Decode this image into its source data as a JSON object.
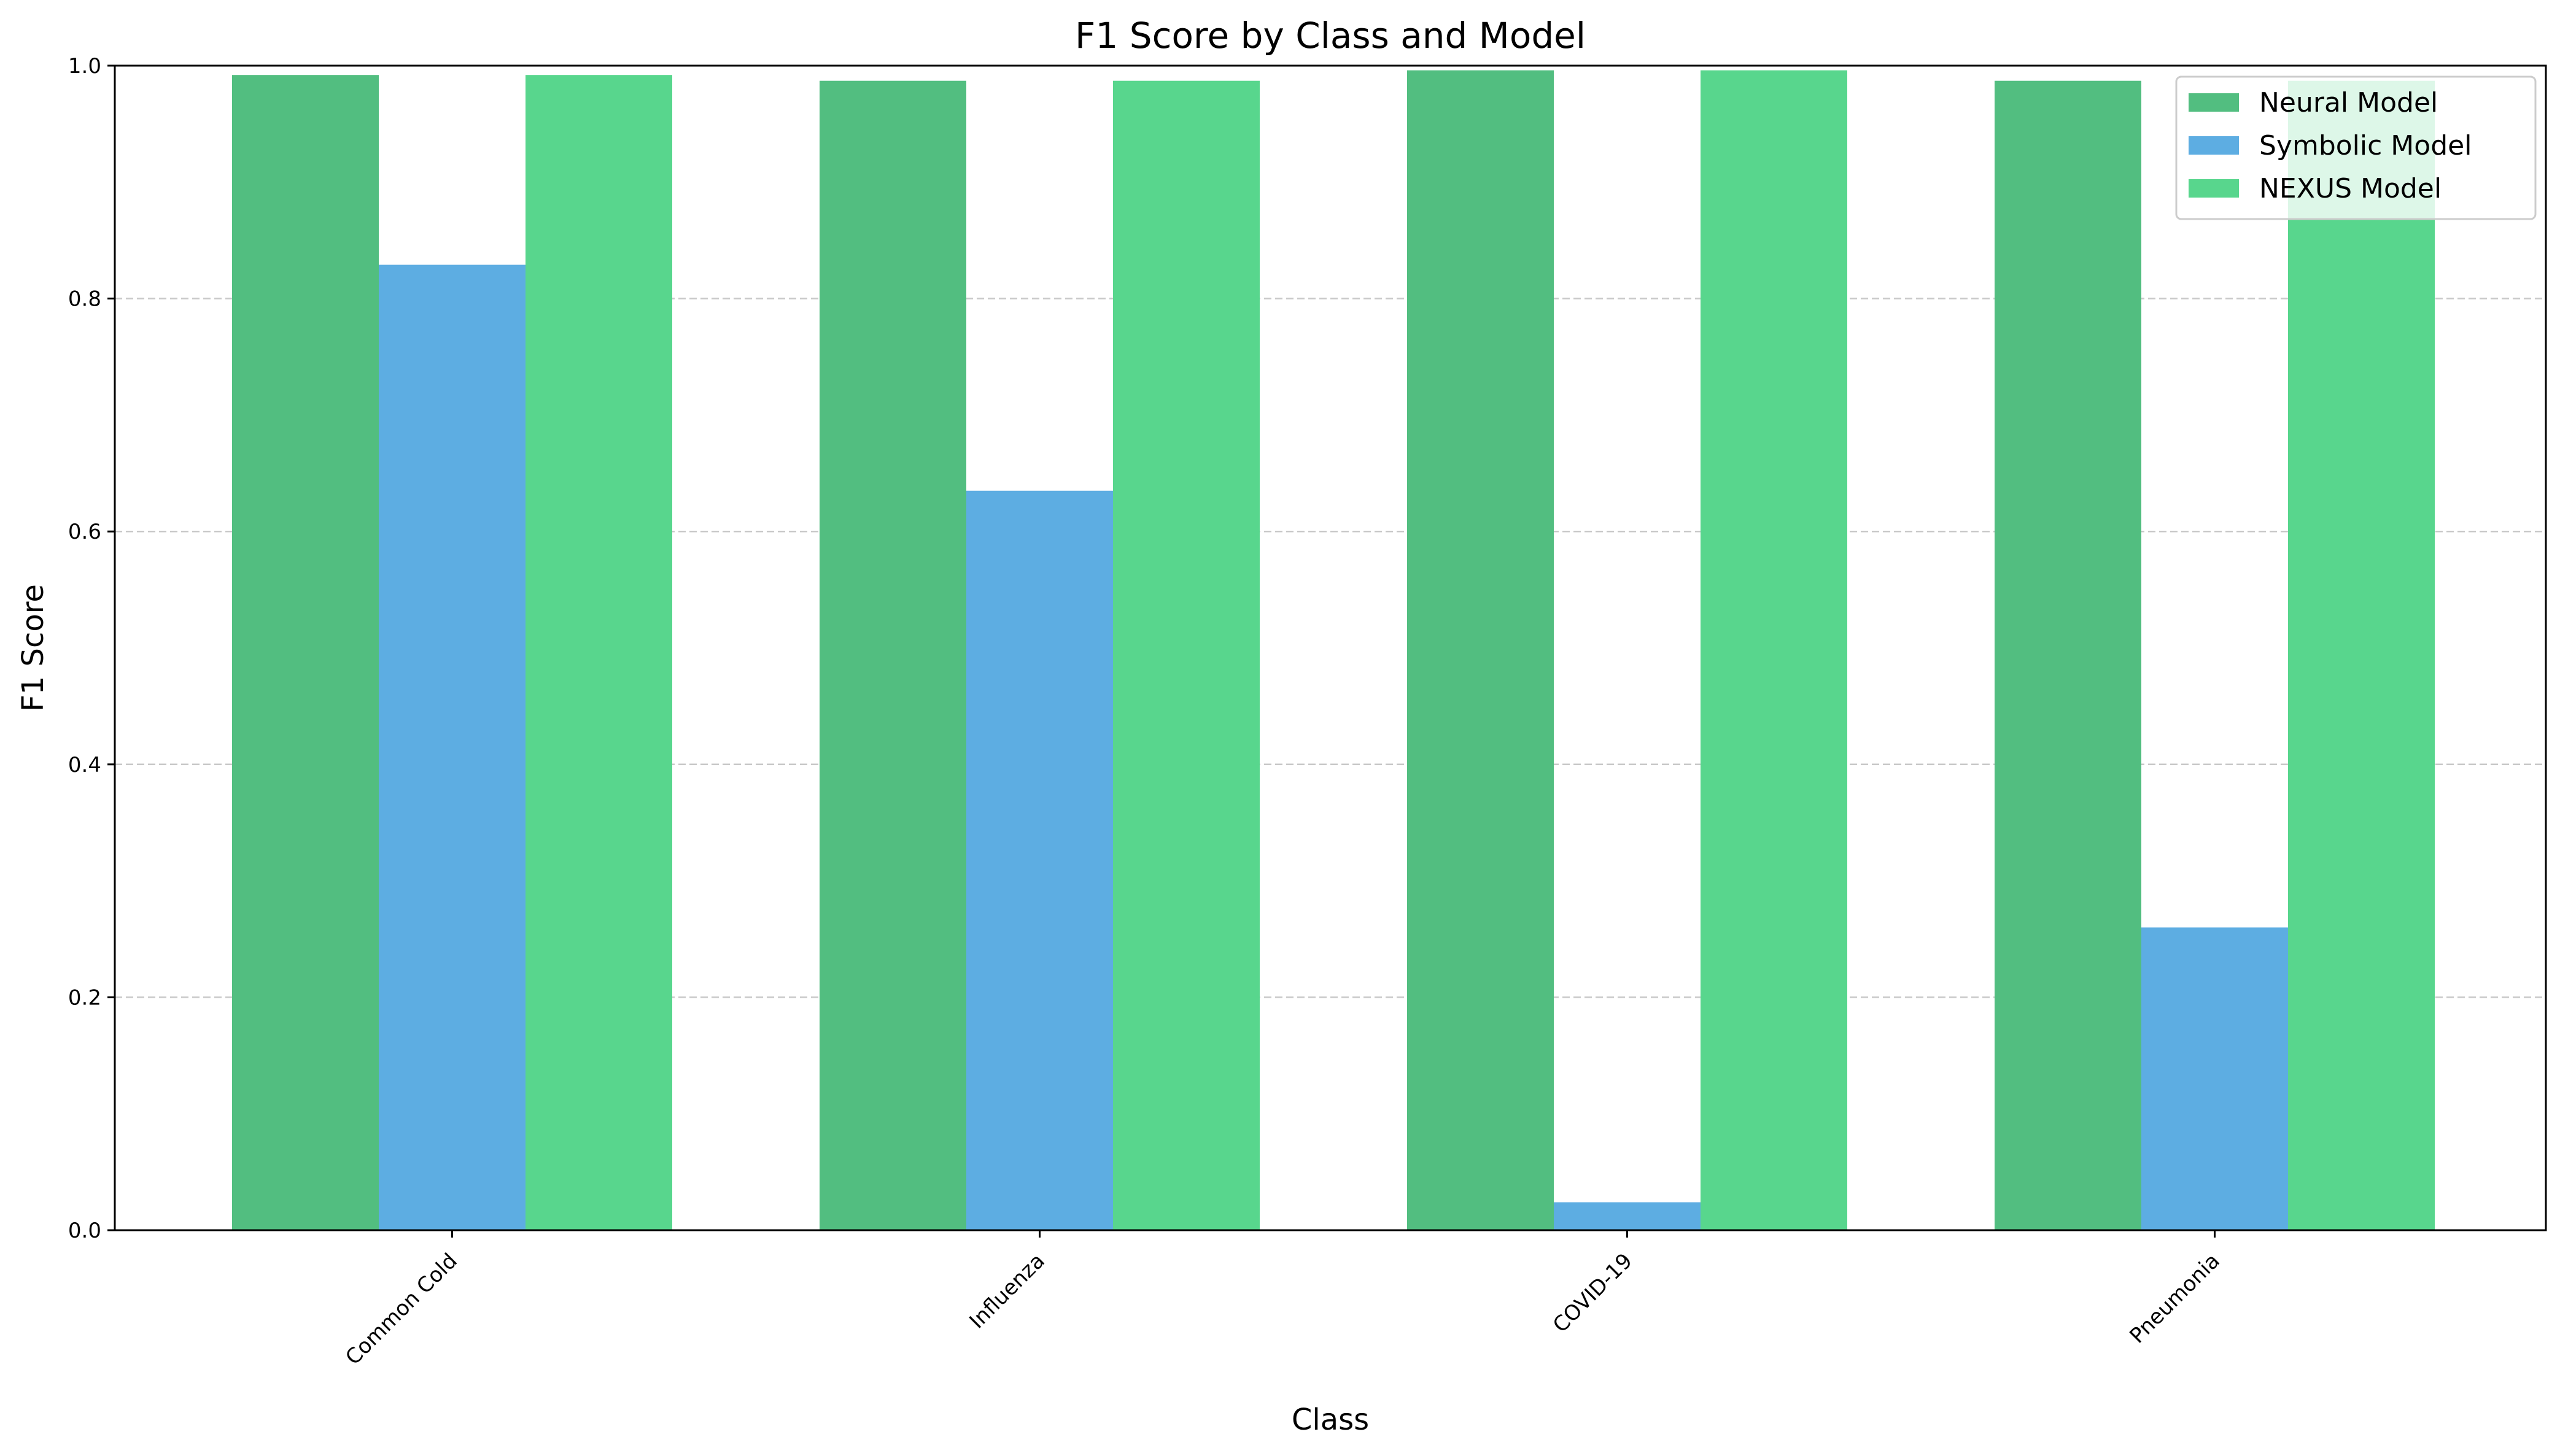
{
  "chart_data": {
    "type": "bar",
    "title": "F1 Score by Class and Model",
    "xlabel": "Class",
    "ylabel": "F1 Score",
    "categories": [
      "Common Cold",
      "Influenza",
      "COVID-19",
      "Pneumonia"
    ],
    "series": [
      {
        "name": "Neural Model",
        "color": "#52BE80",
        "values": [
          0.992,
          0.987,
          0.996,
          0.987
        ]
      },
      {
        "name": "Symbolic Model",
        "color": "#5DADE2",
        "values": [
          0.829,
          0.635,
          0.024,
          0.26
        ]
      },
      {
        "name": "NEXUS Model",
        "color": "#58D68D",
        "values": [
          0.992,
          0.987,
          0.996,
          0.987
        ]
      }
    ],
    "ylim": [
      0,
      1.0
    ],
    "yticks": [
      "0.0",
      "0.2",
      "0.4",
      "0.6",
      "0.8",
      "1.0"
    ],
    "grid": "y-dashed",
    "legend": "top-right"
  }
}
